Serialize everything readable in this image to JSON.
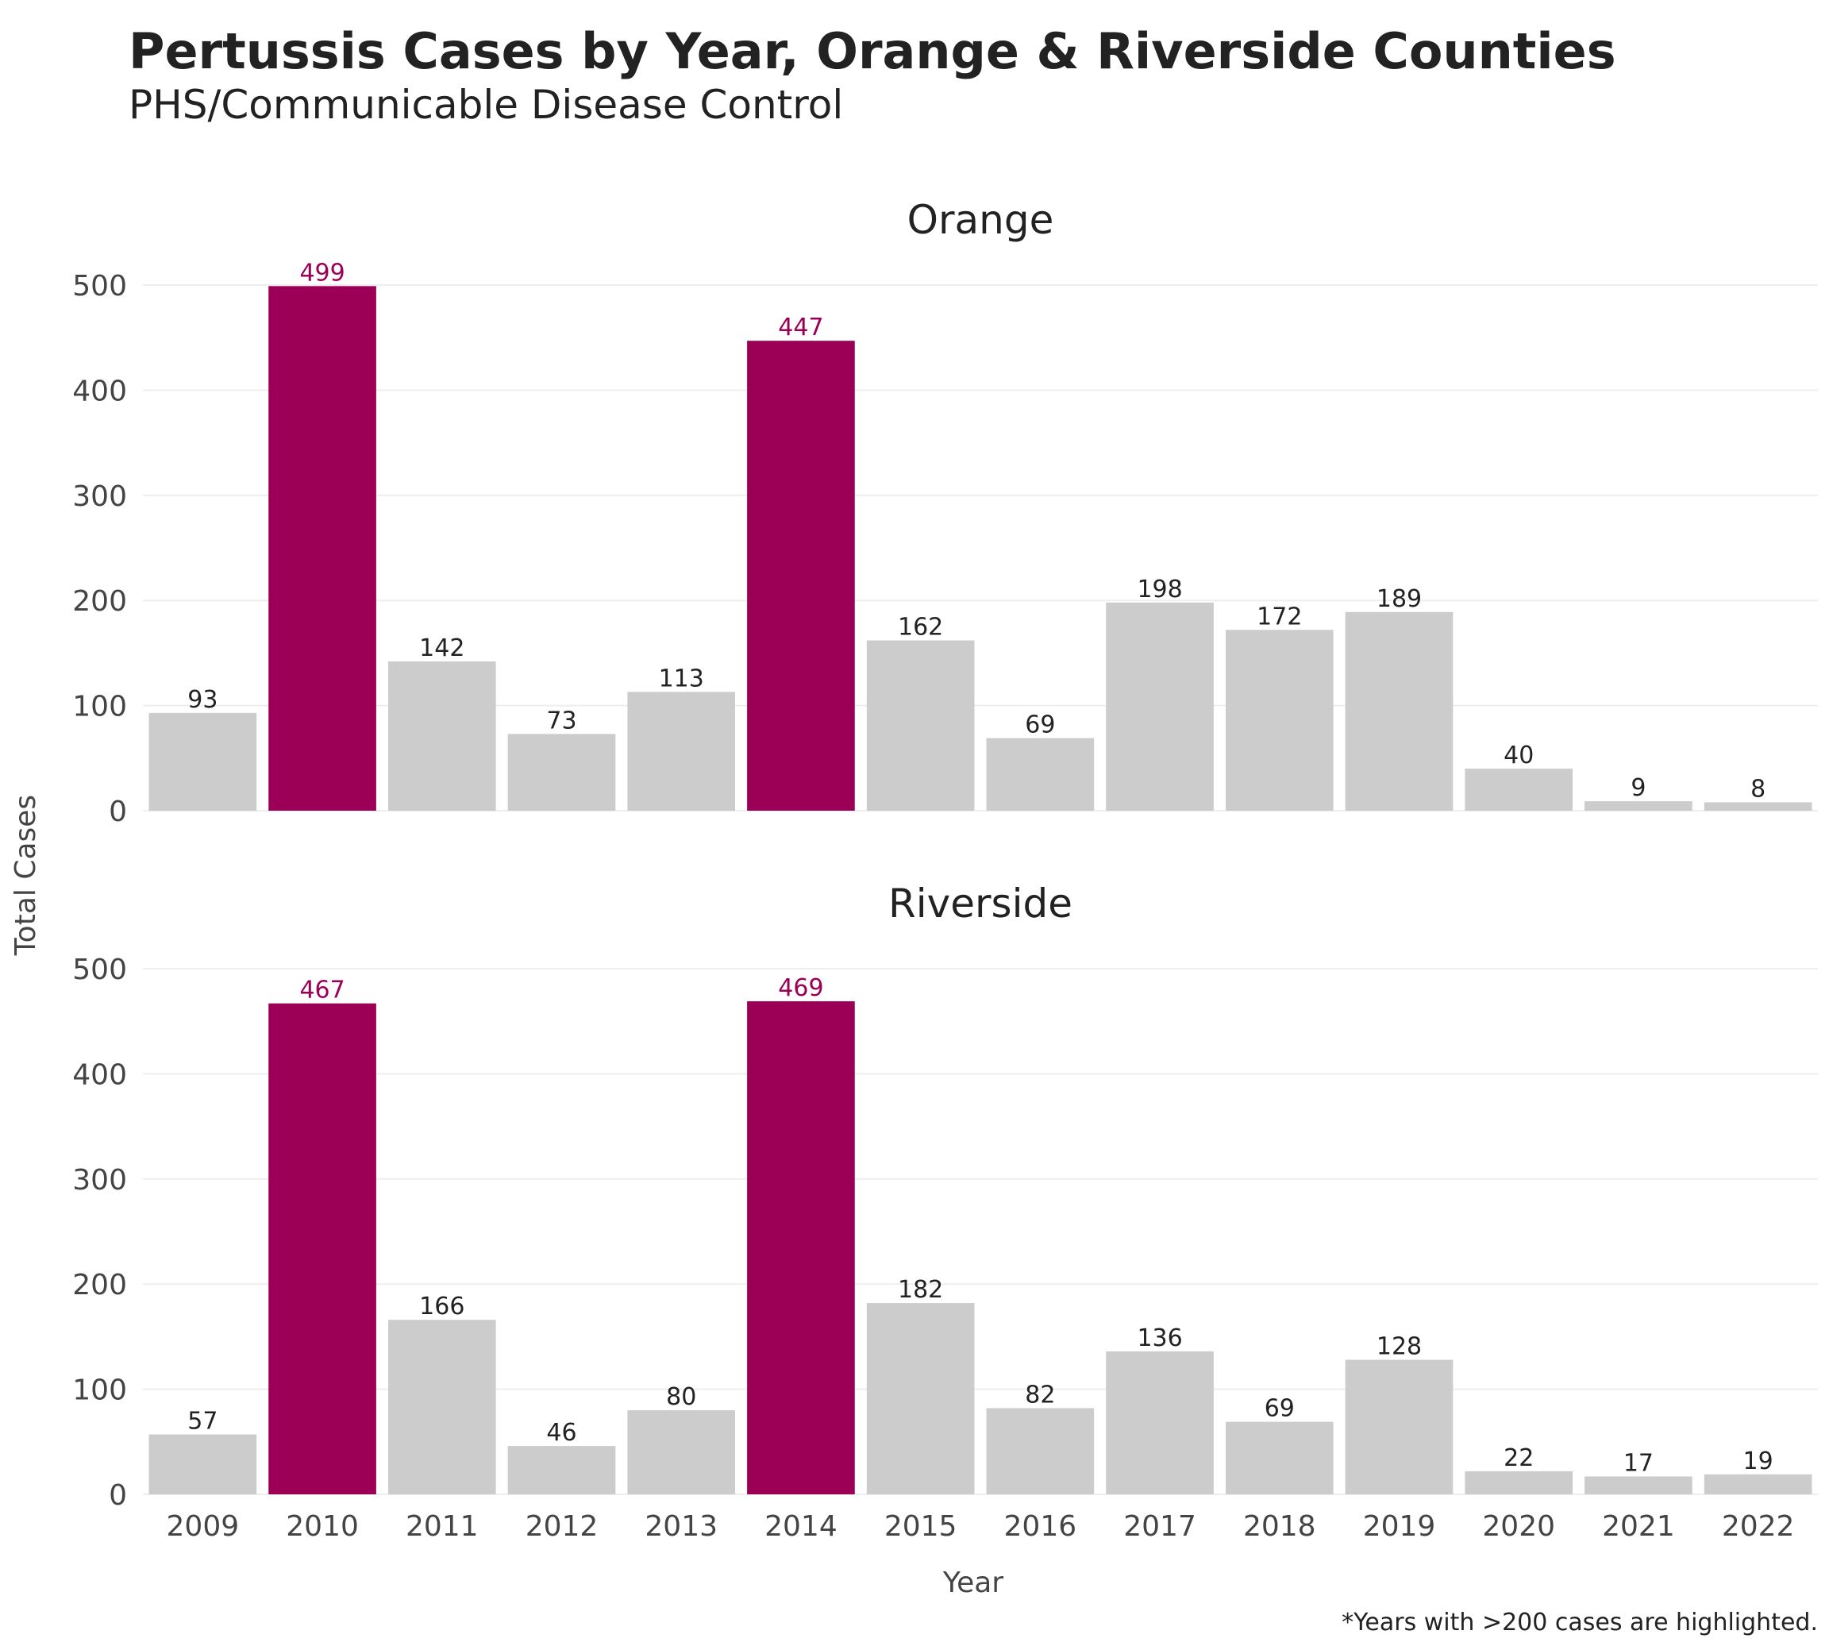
{
  "chart_data": {
    "type": "bar",
    "title": "Pertussis Cases by Year, Orange & Riverside Counties",
    "subtitle": "PHS/Communicable Disease Control",
    "xlabel": "Year",
    "ylabel": "Total Cases",
    "caption": "*Years with >200 cases are highlighted.",
    "categories": [
      "2009",
      "2010",
      "2011",
      "2012",
      "2013",
      "2014",
      "2015",
      "2016",
      "2017",
      "2018",
      "2019",
      "2020",
      "2021",
      "2022"
    ],
    "ylim": [
      0,
      500
    ],
    "yticks": [
      0,
      100,
      200,
      300,
      400,
      500
    ],
    "grid": true,
    "highlight_threshold": 200,
    "colors": {
      "highlight": "#9b0056",
      "normal": "#cccccc",
      "grid": "#eeeeee",
      "text": "#222222"
    },
    "facets": [
      {
        "name": "Orange",
        "values": [
          93,
          499,
          142,
          73,
          113,
          447,
          162,
          69,
          198,
          172,
          189,
          40,
          9,
          8
        ]
      },
      {
        "name": "Riverside",
        "values": [
          57,
          467,
          166,
          46,
          80,
          469,
          182,
          82,
          136,
          69,
          128,
          22,
          17,
          19
        ]
      }
    ]
  }
}
